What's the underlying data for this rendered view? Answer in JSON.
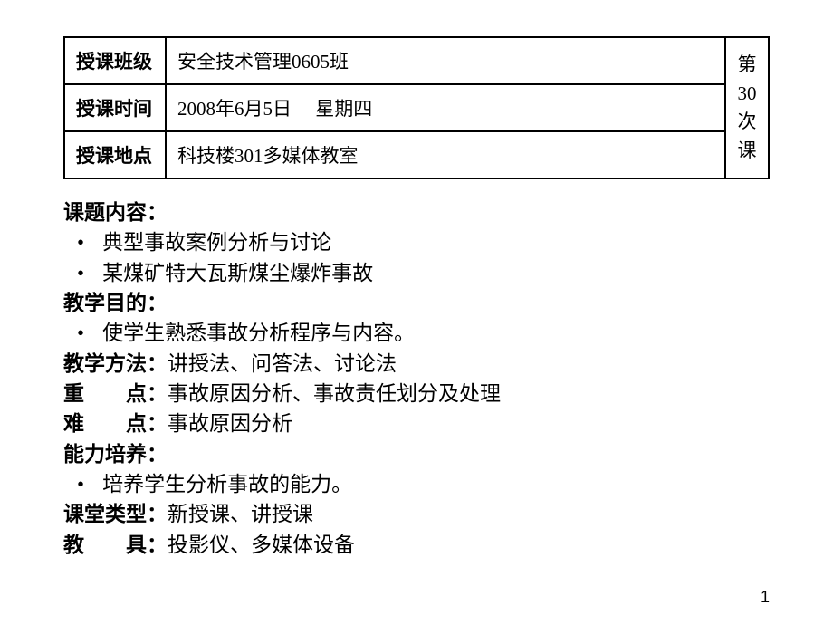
{
  "header": {
    "rows": [
      {
        "label": "授课班级",
        "value": "安全技术管理0605班"
      },
      {
        "label": "授课时间",
        "value": "2008年6月5日　 星期四"
      },
      {
        "label": "授课地点",
        "value": "科技楼301多媒体教室"
      }
    ],
    "sidebar": {
      "line1": "第",
      "line2": "30",
      "line3": "次",
      "line4": "课"
    }
  },
  "content": {
    "topic_label": "课题内容：",
    "topic_items": [
      "典型事故案例分析与讨论",
      "某煤矿特大瓦斯煤尘爆炸事故"
    ],
    "purpose_label": "教学目的：",
    "purpose_items": [
      "使学生熟悉事故分析程序与内容。"
    ],
    "method_label": "教学方法：",
    "method_value": "讲授法、问答法、讨论法",
    "key_label": "重　　点：",
    "key_value": "事故原因分析、事故责任划分及处理",
    "difficulty_label": "难　　点：",
    "difficulty_value": "事故原因分析",
    "ability_label": "能力培养：",
    "ability_items": [
      "培养学生分析事故的能力。"
    ],
    "classtype_label": "课堂类型：",
    "classtype_value": "新授课、讲授课",
    "tools_label": "教　　具：",
    "tools_value": "投影仪、多媒体设备"
  },
  "page_number": "1"
}
